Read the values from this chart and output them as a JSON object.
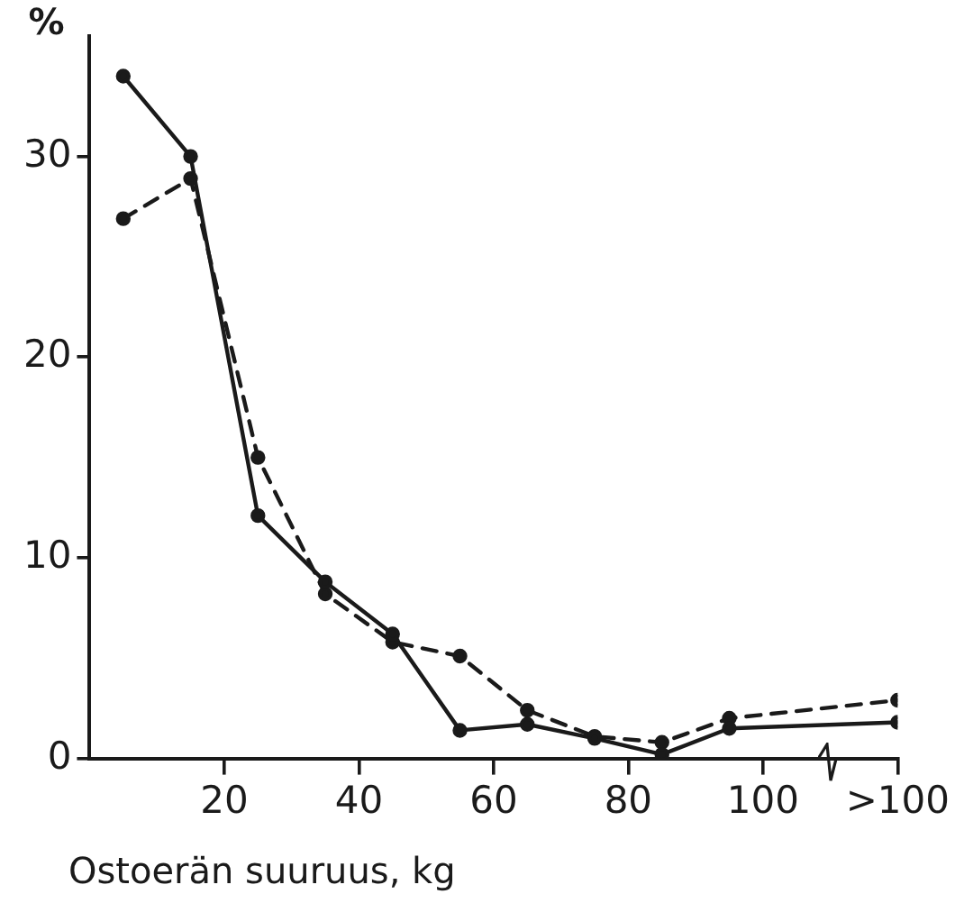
{
  "chart_data": {
    "type": "line",
    "xlabel": "Ostoerän suuruus, kg",
    "ylabel": "%",
    "x": [
      5,
      15,
      25,
      35,
      45,
      55,
      65,
      75,
      85,
      95,
      120
    ],
    "xlim": [
      0,
      120
    ],
    "xticks": [
      20,
      40,
      60,
      80,
      100,
      {
        "value": 120,
        "label": ">100"
      }
    ],
    "ylim": [
      0,
      36
    ],
    "yticks": [
      0,
      10,
      20,
      30
    ],
    "grid": false,
    "legend": false,
    "marker": "circle",
    "series": [
      {
        "color": "#1a1a1a",
        "line_style": "solid",
        "values": [
          34,
          30,
          12.1,
          8.8,
          6.2,
          1.4,
          1.7,
          1,
          0.2,
          1.5,
          1.8
        ]
      },
      {
        "color": "#1a1a1a",
        "line_style": "dashed",
        "values": [
          26.9,
          28.9,
          15,
          8.2,
          5.8,
          5.1,
          2.4,
          1.1,
          0.8,
          2,
          2.9
        ]
      }
    ]
  }
}
